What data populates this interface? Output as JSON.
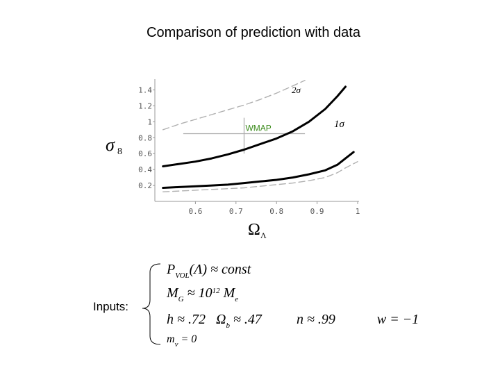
{
  "title": "Comparison of prediction with data",
  "chart_data": {
    "type": "line",
    "xlabel": "Ω",
    "xlabel_sub": "Λ",
    "ylabel": "σ",
    "ylabel_sub": "8",
    "xlim": [
      0.5,
      1.0
    ],
    "ylim": [
      0.0,
      1.5
    ],
    "x_ticks": [
      "0.6",
      "0.7",
      "0.8",
      "0.9",
      "1"
    ],
    "x_tick_values": [
      0.6,
      0.7,
      0.8,
      0.9,
      1.0
    ],
    "y_ticks": [
      "0.2",
      "0.4",
      "0.6",
      "0.8",
      "1",
      "1.2",
      "1.4"
    ],
    "y_tick_values": [
      0.2,
      0.4,
      0.6,
      0.8,
      1.0,
      1.2,
      1.4
    ],
    "series": [
      {
        "label": "2σ upper",
        "style": "dashed",
        "color": "#b0b0b0",
        "x": [
          0.52,
          0.56,
          0.6,
          0.64,
          0.68,
          0.72,
          0.76,
          0.8,
          0.84,
          0.87
        ],
        "y": [
          0.9,
          0.97,
          1.03,
          1.09,
          1.15,
          1.21,
          1.28,
          1.36,
          1.45,
          1.52
        ]
      },
      {
        "label": "1σ upper",
        "style": "solid",
        "color": "#000000",
        "x": [
          0.52,
          0.56,
          0.6,
          0.64,
          0.68,
          0.72,
          0.76,
          0.8,
          0.84,
          0.88,
          0.92,
          0.95,
          0.97
        ],
        "y": [
          0.44,
          0.47,
          0.5,
          0.54,
          0.59,
          0.65,
          0.72,
          0.79,
          0.88,
          1.0,
          1.16,
          1.32,
          1.44
        ]
      },
      {
        "label": "1σ lower",
        "style": "solid",
        "color": "#000000",
        "x": [
          0.52,
          0.56,
          0.6,
          0.64,
          0.68,
          0.72,
          0.76,
          0.8,
          0.84,
          0.88,
          0.92,
          0.95,
          0.97,
          0.99
        ],
        "y": [
          0.17,
          0.18,
          0.19,
          0.2,
          0.21,
          0.23,
          0.25,
          0.27,
          0.3,
          0.34,
          0.39,
          0.46,
          0.54,
          0.62
        ]
      },
      {
        "label": "2σ lower",
        "style": "dashed",
        "color": "#b0b0b0",
        "x": [
          0.52,
          0.56,
          0.6,
          0.64,
          0.68,
          0.72,
          0.76,
          0.8,
          0.84,
          0.88,
          0.92,
          0.95,
          0.97,
          1.0
        ],
        "y": [
          0.12,
          0.13,
          0.14,
          0.15,
          0.16,
          0.17,
          0.19,
          0.21,
          0.23,
          0.26,
          0.3,
          0.36,
          0.42,
          0.5
        ]
      }
    ],
    "wmap_point": {
      "label": "WMAP",
      "label_color": "#3a8a1a",
      "x": 0.72,
      "y": 0.85,
      "x_err": [
        0.57,
        0.87
      ],
      "y_err": [
        0.6,
        1.05
      ]
    },
    "contour_labels": [
      "2σ",
      "1σ"
    ]
  },
  "inputs": {
    "label": "Inputs:",
    "lines": [
      {
        "parts": [
          {
            "t": "P"
          },
          {
            "t": "VOL",
            "sub": true
          },
          {
            "t": "(Λ) ≈ const"
          }
        ]
      },
      {
        "parts": [
          {
            "t": "M"
          },
          {
            "t": "G",
            "sub": true
          },
          {
            "t": " ≈ 10"
          },
          {
            "t": "12",
            "sup": true
          },
          {
            "t": " M"
          },
          {
            "t": "e",
            "sub": true
          }
        ]
      },
      {
        "parts": [
          {
            "t": "h ≈ .72"
          },
          {
            "t": "   Ω"
          },
          {
            "t": "b",
            "sub": true
          },
          {
            "t": " ≈ .47"
          },
          {
            "t": "          n ≈ .99"
          },
          {
            "t": "            w = −1"
          }
        ]
      },
      {
        "parts": [
          {
            "t": "m"
          },
          {
            "t": "ν",
            "sub": true
          },
          {
            "t": " = 0"
          }
        ]
      }
    ]
  }
}
